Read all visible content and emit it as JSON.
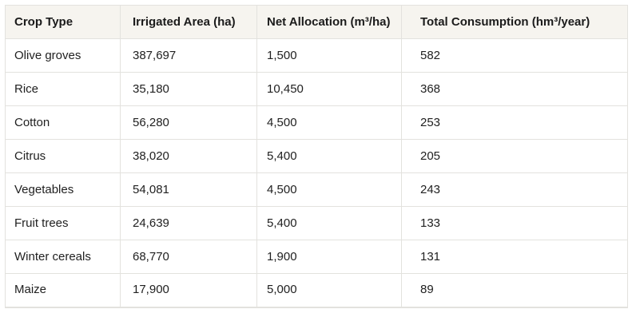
{
  "colors": {
    "page_bg": "#ffffff",
    "header_bg": "#f6f4ef",
    "border": "#e3e2de",
    "text": "#212121"
  },
  "chart_data": {
    "type": "table",
    "title": "",
    "columns": [
      "Crop Type",
      "Irrigated Area (ha)",
      "Net Allocation (m³/ha)",
      "Total Consumption (hm³/year)"
    ],
    "rows": [
      [
        "Olive groves",
        "387,697",
        "1,500",
        "582"
      ],
      [
        "Rice",
        "35,180",
        "10,450",
        "368"
      ],
      [
        "Cotton",
        "56,280",
        "4,500",
        "253"
      ],
      [
        "Citrus",
        "38,020",
        "5,400",
        "205"
      ],
      [
        "Vegetables",
        "54,081",
        "4,500",
        "243"
      ],
      [
        "Fruit trees",
        "24,639",
        "5,400",
        "133"
      ],
      [
        "Winter cereals",
        "68,770",
        "1,900",
        "131"
      ],
      [
        "Maize",
        "17,900",
        "5,000",
        "89"
      ]
    ]
  }
}
